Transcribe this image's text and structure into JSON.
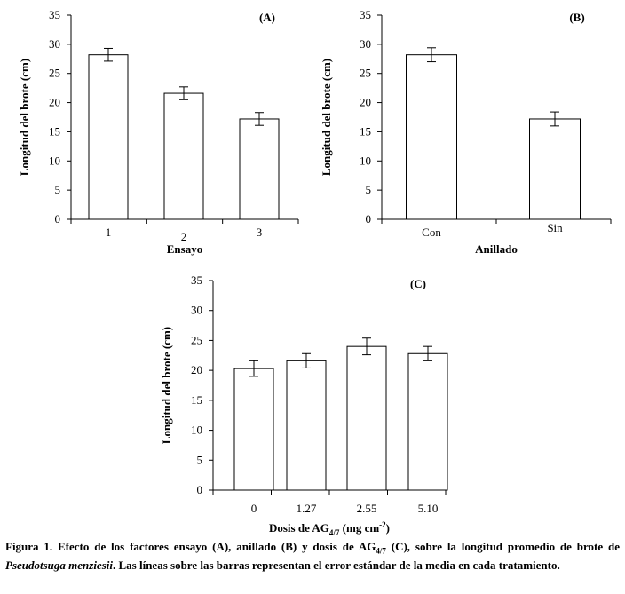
{
  "chart_data": [
    {
      "type": "bar",
      "panel_label": "(A)",
      "categories": [
        "1",
        "2",
        "3"
      ],
      "values": [
        28.2,
        21.6,
        17.2
      ],
      "errors": [
        1.1,
        1.1,
        1.1
      ],
      "xlabel": "Ensayo",
      "ylabel": "Longitud del brote (cm)",
      "ylim": [
        0,
        35
      ],
      "yticks": [
        "0",
        "5",
        "10",
        "15",
        "20",
        "25",
        "30",
        "35"
      ],
      "grid": false
    },
    {
      "type": "bar",
      "panel_label": "(B)",
      "categories": [
        "Con",
        "Sin"
      ],
      "values": [
        28.2,
        17.2
      ],
      "errors": [
        1.2,
        1.2
      ],
      "xlabel": "Anillado",
      "ylabel": "Longitud del brote (cm)",
      "ylim": [
        0,
        35
      ],
      "yticks": [
        "0",
        "5",
        "10",
        "15",
        "20",
        "25",
        "30",
        "35"
      ],
      "grid": false
    },
    {
      "type": "bar",
      "panel_label": "(C)",
      "categories": [
        "0",
        "1.27",
        "2.55",
        "5.10"
      ],
      "values": [
        20.3,
        21.6,
        24.0,
        22.8
      ],
      "errors": [
        1.3,
        1.2,
        1.4,
        1.2
      ],
      "xlabel_main": "Dosis de AG",
      "xlabel_sub": "4/7",
      "xlabel_tail": " (mg cm",
      "xlabel_sup": "-2",
      "xlabel_end": ")",
      "ylabel": "Longitud del brote (cm)",
      "ylim": [
        0,
        35
      ],
      "yticks": [
        "0",
        "5",
        "10",
        "15",
        "20",
        "25",
        "30",
        "35"
      ],
      "grid": false
    }
  ],
  "caption": {
    "p1": "Figura 1. Efecto de los factores ensayo (A), anillado (B) y dosis de AG",
    "p1_sub": "4/7",
    "p2": " (C), sobre la longitud promedio de brote de ",
    "species": "Pseudotsuga menziesii",
    "p3": ". Las líneas sobre las barras representan el error estándar de la media en cada tratamiento."
  }
}
